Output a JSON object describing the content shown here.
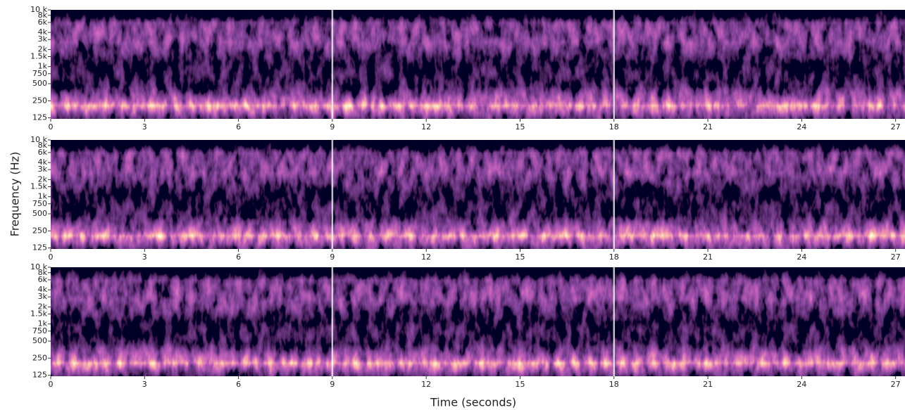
{
  "chart_data": {
    "type": "spectrogram",
    "x_label": "Time (seconds)",
    "y_label": "Frequency (Hz)",
    "colormap": "magma",
    "y_scale": "log",
    "panels": 3,
    "xlim": [
      0,
      27.3
    ],
    "xticks": [
      0,
      3,
      6,
      9,
      12,
      15,
      18,
      21,
      24,
      27
    ],
    "ylim": [
      120,
      10000
    ],
    "yticks": [
      125,
      250,
      500,
      750,
      {
        "value": 1000,
        "label": "1k"
      },
      {
        "value": 1500,
        "label": "1.5k"
      },
      {
        "value": 2000,
        "label": "2k"
      },
      {
        "value": 3000,
        "label": "3k"
      },
      {
        "value": 4000,
        "label": "4k"
      },
      {
        "value": 6000,
        "label": "6k"
      },
      {
        "value": 8000,
        "label": "8k"
      },
      {
        "value": 10000,
        "label": "10 k"
      }
    ],
    "markers": [
      9,
      18
    ]
  }
}
